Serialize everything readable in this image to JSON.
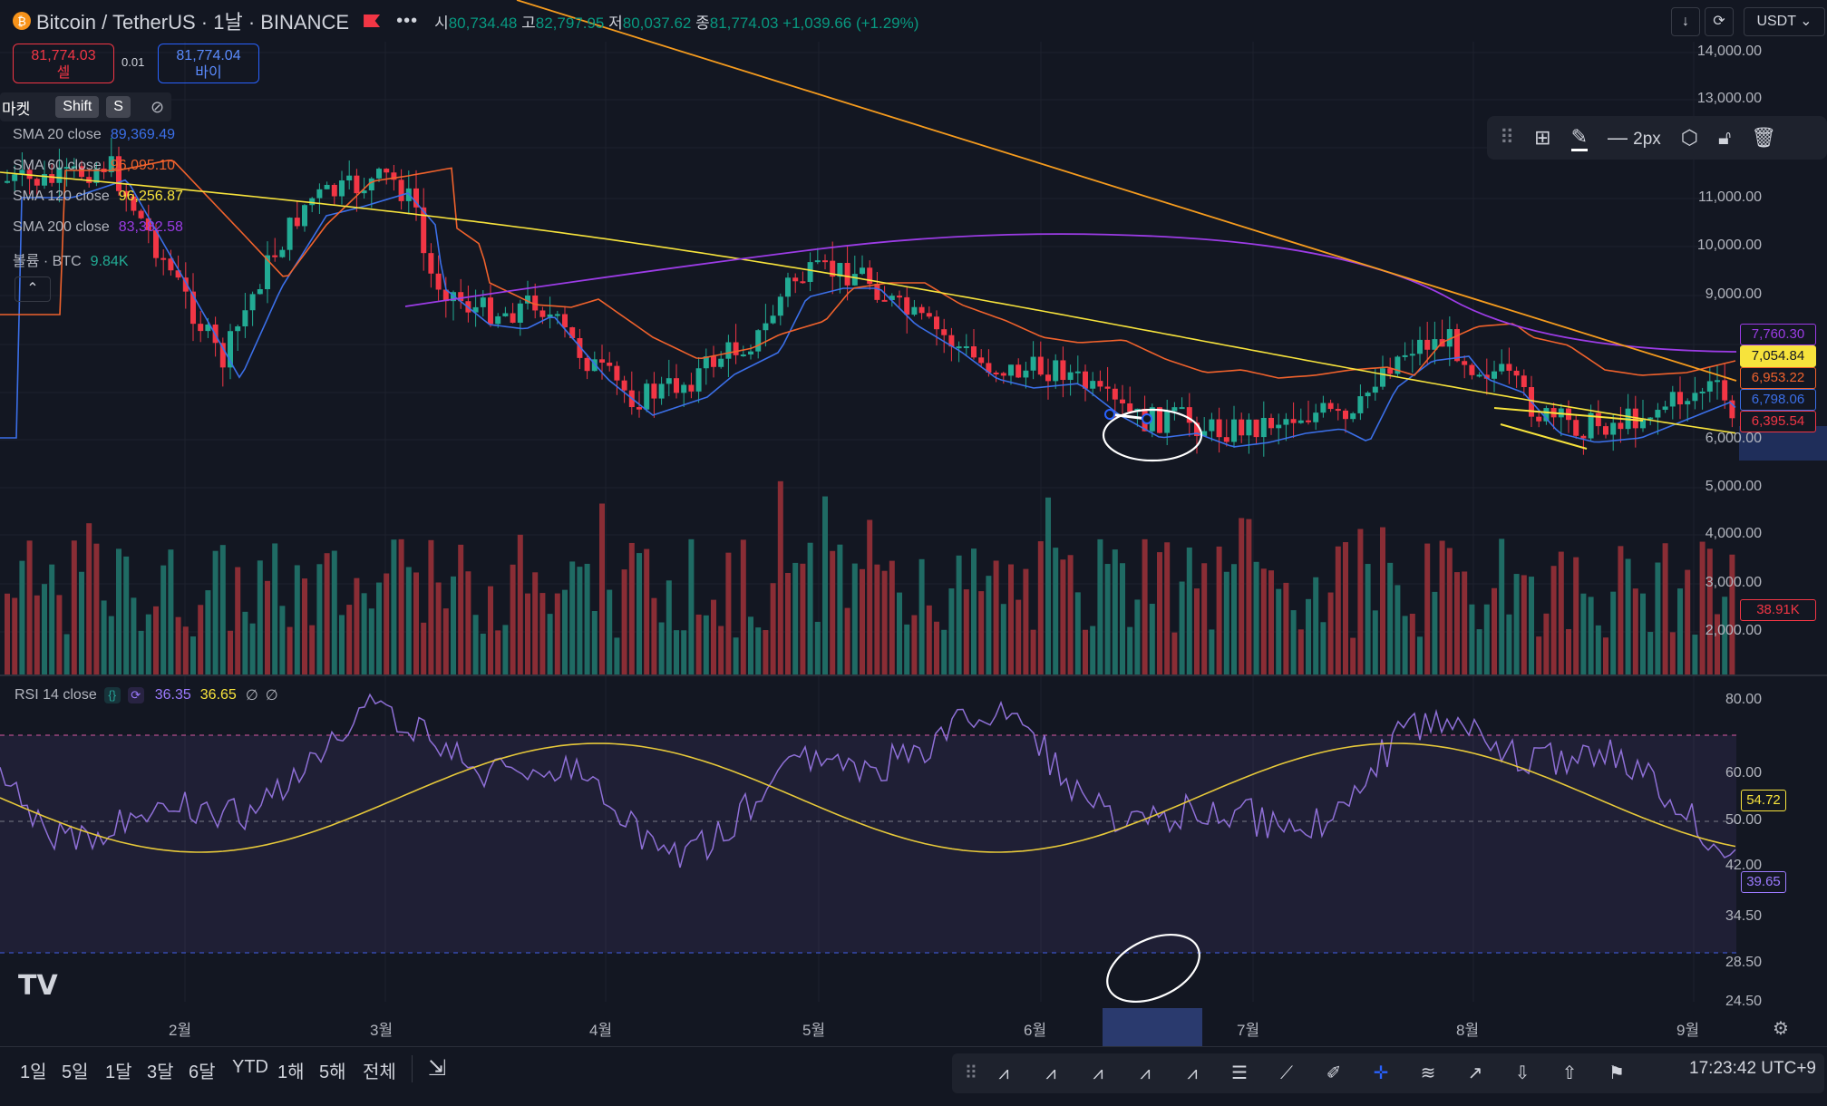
{
  "header": {
    "symbol_icon": "bitcoin-icon",
    "title": "Bitcoin / TetherUS · 1날 · BINANCE",
    "open_label": "시",
    "open": "80,734.48",
    "high_label": "고",
    "high": "82,797.95",
    "low_label": "저",
    "low": "80,037.62",
    "close_label": "종",
    "close": "81,774.03",
    "change": "+1,039.66 (+1.29%)",
    "currency": "USDT"
  },
  "trade": {
    "sell_price": "81,774.03",
    "sell_label": "셀",
    "spread": "0.01",
    "buy_price": "81,774.04",
    "buy_label": "바이"
  },
  "shortcut_bar": {
    "label": "마켓",
    "key1": "Shift",
    "key2": "S"
  },
  "indicators": [
    {
      "name": "SMA 20 close",
      "value": "89,369.49",
      "color": "#3b6fe8"
    },
    {
      "name": "SMA 60 close",
      "value": "96,095.10",
      "color": "#f0622c"
    },
    {
      "name": "SMA 120 close",
      "value": "96,256.87",
      "color": "#f7e33c"
    },
    {
      "name": "SMA 200 close",
      "value": "83,382.58",
      "color": "#9c3ce6"
    },
    {
      "name": "볼륨 · BTC",
      "value": "9.84K",
      "color": "#22ab94"
    }
  ],
  "price_axis": [
    "14,000.00",
    "13,000.00",
    "11,000.00",
    "10,000.00",
    "9,000.00",
    "6,000.00",
    "5,000.00",
    "4,000.00",
    "3,000.00",
    "2,000.00"
  ],
  "price_tags": [
    {
      "value": "7,760.30",
      "color": "#9c3ce6"
    },
    {
      "value": "7,054.84",
      "color": "#f7e33c"
    },
    {
      "value": "6,953.22",
      "color": "#f0622c"
    },
    {
      "value": "6,798.06",
      "color": "#3b6fe8"
    },
    {
      "value": "6,395.54",
      "color": "#f23645"
    },
    {
      "value": "38.91K",
      "color": "#f23645"
    }
  ],
  "rsi": {
    "name": "RSI 14 close",
    "value1": "36.35",
    "value2": "36.65",
    "extra1": "∅",
    "extra2": "∅",
    "axis": [
      "80.00",
      "60.00",
      "50.00",
      "42.00",
      "34.50",
      "28.50",
      "24.50"
    ],
    "tags": [
      {
        "value": "54.72",
        "color": "#f7e33c"
      },
      {
        "value": "39.65",
        "color": "#9c7bff"
      }
    ]
  },
  "time_axis": [
    "2월",
    "3월",
    "4월",
    "5월",
    "6월",
    "7월",
    "8월",
    "9월"
  ],
  "ranges": [
    "1일",
    "5일",
    "1달",
    "3달",
    "6달",
    "YTD",
    "1해",
    "5해",
    "전체"
  ],
  "clock": "17:23:42 UTC+9",
  "float_toolbar": {
    "width_label": "2px"
  },
  "logo": "TV"
}
